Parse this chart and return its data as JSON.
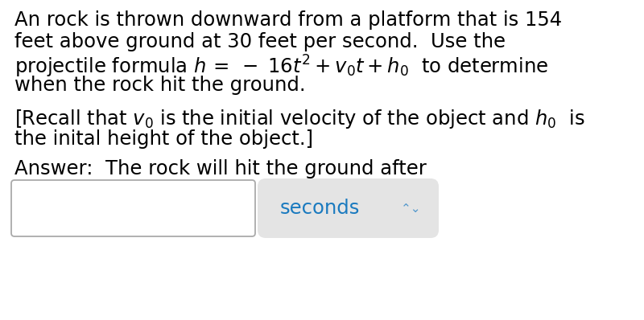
{
  "bg_color": "#ffffff",
  "text_color": "#000000",
  "blue_color": "#1a7abf",
  "line1": "An rock is thrown downward from a platform that is 154",
  "line2": "feet above ground at 30 feet per second.  Use the",
  "line3_math": "projectile formula $h\\,=\\;-\\;16t^2 + v_0t + h_0$  to determine",
  "line4": "when the rock hit the ground.",
  "recall_line1": "[Recall that $v_0$ is the initial velocity of the object and $h_0$  is",
  "recall_line2": "the inital height of the object.]",
  "answer_line": "Answer:  The rock will hit the ground after",
  "seconds_label": "seconds",
  "font_size": 17.5,
  "arrow_symbol": "◄►"
}
